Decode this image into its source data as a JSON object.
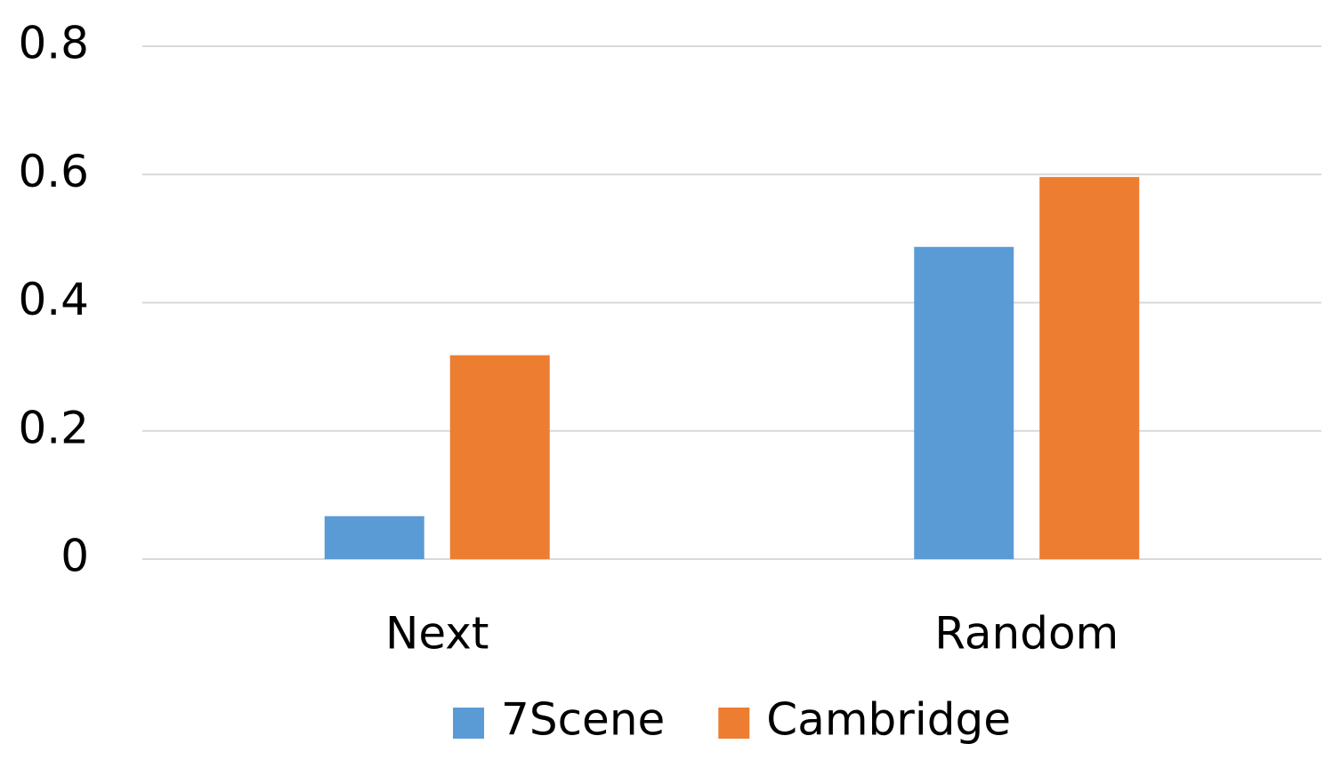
{
  "chart_data": {
    "type": "bar",
    "categories": [
      "Next",
      "Random"
    ],
    "series": [
      {
        "name": "7Scene",
        "color": "#5b9bd5",
        "values": [
          0.067,
          0.487
        ]
      },
      {
        "name": "Cambridge",
        "color": "#ed7d31",
        "values": [
          0.318,
          0.596
        ]
      }
    ],
    "ylim": [
      0,
      0.8
    ],
    "yticks": [
      0,
      0.2,
      0.4,
      0.6,
      0.8
    ],
    "grid": true,
    "legend": "bottom"
  }
}
